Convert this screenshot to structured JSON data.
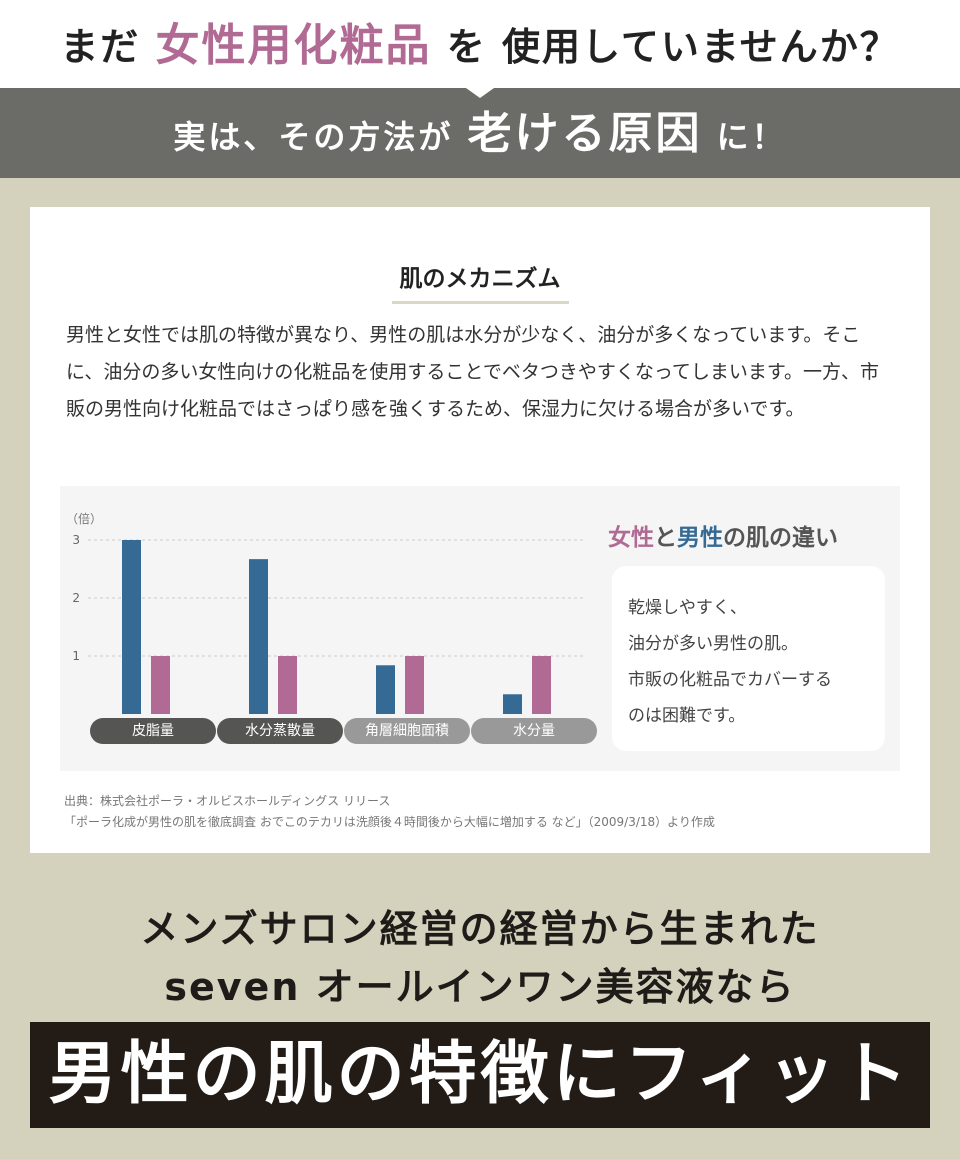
{
  "header": {
    "pre": "まだ",
    "highlight": "女性用化粧品",
    "post": "を 使用していませんか？"
  },
  "band": {
    "pre": "実は、その方法が",
    "big": "老ける原因",
    "post": "に！"
  },
  "card": {
    "title": "肌のメカニズム",
    "body": "男性と女性では肌の特徴が異なり、男性の肌は水分が少なく、油分が多くなっています。そこに、油分の多い女性向けの化粧品を使用することでベタつきやすくなってしまいます。一方、市販の男性向け化粧品ではさっぱり感を強くするため、保湿力に欠ける場合が多いです。",
    "comparison_title": {
      "female": "女性",
      "mid": "と",
      "male": "男性",
      "post": "の肌の違い"
    },
    "bubble": [
      "乾燥しやすく、",
      "油分が多い男性の肌。",
      "市販の化粧品でカバーする",
      "のは困難です。"
    ],
    "source": [
      "出典：株式会社ポーラ・オルビスホールディングス リリース",
      "「ポーラ化成が男性の肌を徹底調査 おでこのテカリは洗顔後４時間後から大幅に増加する など」（2009/3/18）より作成"
    ]
  },
  "chart_data": {
    "type": "bar",
    "ylabel": "（倍）",
    "ylim": [
      0,
      3
    ],
    "yticks": [
      "1",
      "2",
      "3"
    ],
    "grid": true,
    "categories": [
      "皮脂量",
      "水分蒸散量",
      "角層細胞面積",
      "水分量"
    ],
    "series": [
      {
        "values": [
          3.0,
          2.67,
          0.84,
          0.34
        ],
        "color": "#356a94"
      },
      {
        "values": [
          1,
          1,
          1,
          1
        ],
        "color": "#b06a93"
      }
    ],
    "label_colors": [
      "#555553",
      "#555553",
      "#999999",
      "#999999"
    ]
  },
  "footer": {
    "line1": "メンズサロン経営の経営から生まれた",
    "line2": "seven オールインワン美容液なら",
    "banner": "男性の肌の特徴にフィット"
  }
}
